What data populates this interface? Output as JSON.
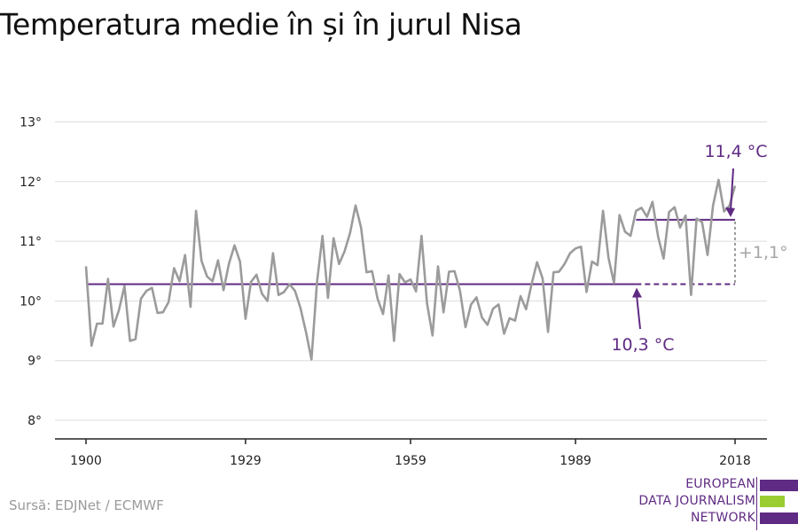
{
  "chart_data": {
    "type": "line",
    "title": "Temperatura medie în și în jurul Nisa",
    "xlabel": "",
    "ylabel": "",
    "xlim": [
      1900,
      2018
    ],
    "ylim": [
      8,
      13
    ],
    "x_ticks": [
      1900,
      1929,
      1959,
      1989,
      2018
    ],
    "y_ticks": [
      8,
      9,
      10,
      11,
      12,
      13
    ],
    "y_tick_labels": [
      "8°",
      "9°",
      "10°",
      "11°",
      "12°",
      "13°"
    ],
    "grid": true,
    "x_start": 1900,
    "series": [
      {
        "color": "#9b9b9b",
        "values": [
          10.58,
          9.25,
          9.62,
          9.62,
          10.37,
          9.57,
          9.85,
          10.25,
          9.33,
          9.36,
          10.04,
          10.17,
          10.22,
          9.8,
          9.81,
          9.98,
          10.55,
          10.33,
          10.77,
          9.9,
          11.51,
          10.67,
          10.41,
          10.33,
          10.68,
          10.18,
          10.63,
          10.93,
          10.66,
          9.7,
          10.32,
          10.44,
          10.12,
          10.0,
          10.8,
          10.1,
          10.15,
          10.28,
          10.17,
          9.88,
          9.48,
          9.02,
          10.31,
          11.09,
          10.05,
          11.05,
          10.62,
          10.83,
          11.14,
          11.6,
          11.23,
          10.48,
          10.5,
          10.04,
          9.78,
          10.43,
          9.33,
          10.45,
          10.31,
          10.36,
          10.16,
          11.09,
          9.96,
          9.42,
          10.58,
          9.81,
          10.49,
          10.5,
          10.17,
          9.56,
          9.94,
          10.06,
          9.72,
          9.6,
          9.87,
          9.94,
          9.45,
          9.71,
          9.67,
          10.08,
          9.86,
          10.28,
          10.65,
          10.38,
          9.48,
          10.48,
          10.49,
          10.62,
          10.8,
          10.88,
          10.91,
          10.15,
          10.66,
          10.6,
          11.51,
          10.72,
          10.3,
          11.44,
          11.16,
          11.09,
          11.51,
          11.56,
          11.41,
          11.66,
          11.08,
          10.71,
          11.49,
          11.57,
          11.23,
          11.43,
          10.1,
          11.38,
          11.32,
          10.77,
          11.6,
          12.03,
          11.5,
          11.6,
          11.93
        ]
      }
    ],
    "baselines": [
      {
        "label": "10,3 °C",
        "value": 10.28,
        "x_start": 1900,
        "x_solid_end": 2000,
        "x_end": 2018,
        "color": "#5f2a83"
      },
      {
        "label": "11,4 °C",
        "value": 11.36,
        "x_start": 2000,
        "x_end": 2018,
        "color": "#5f2a83"
      }
    ],
    "difference_label": "+1,1°"
  },
  "source": "Sursă: EDJNet / ECMWF",
  "logo": {
    "lines": [
      "EUROPEAN",
      "DATA JOURNALISM",
      "NETWORK"
    ],
    "colors": [
      "#5f2a83",
      "#9acd32",
      "#5f2a83"
    ]
  }
}
